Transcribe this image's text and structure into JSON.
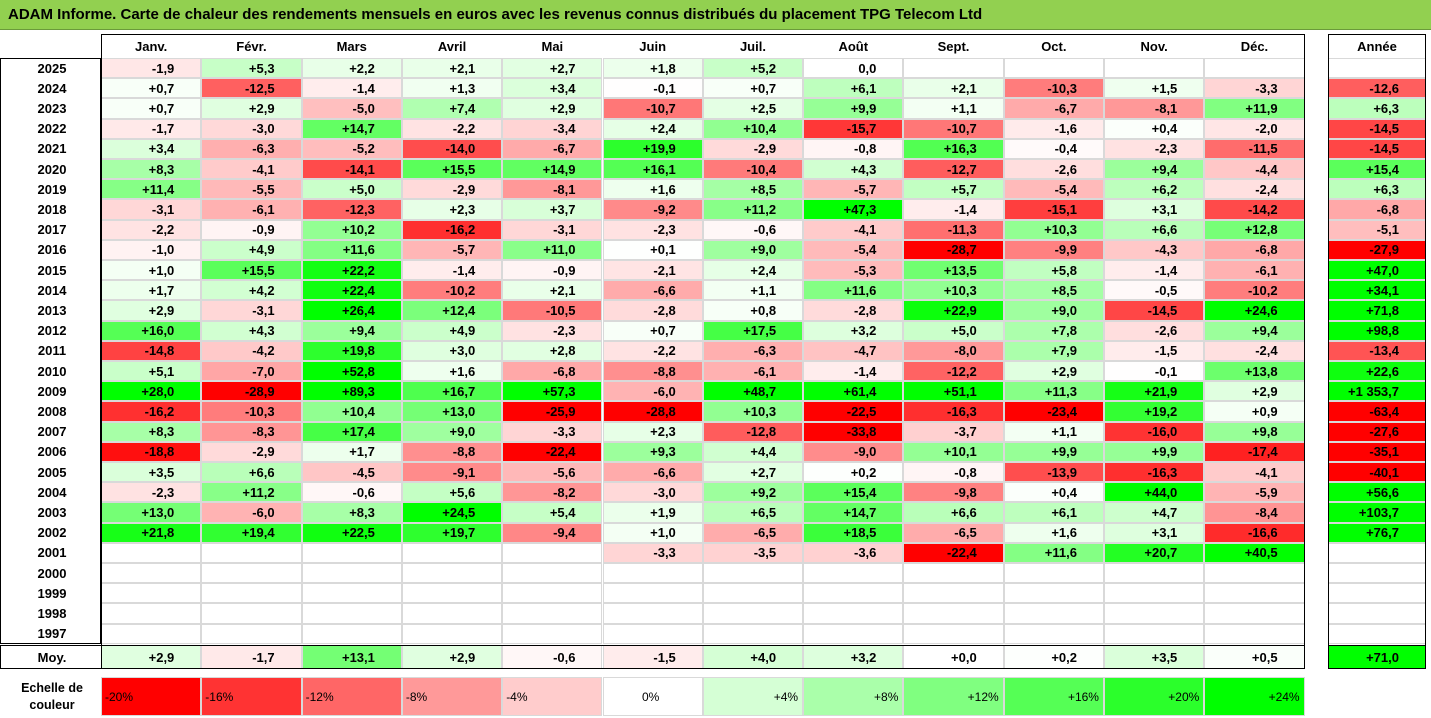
{
  "title": "ADAM Informe. Carte de chaleur des rendements mensuels en euros avec les revenus connus distribués du placement TPG Telecom Ltd",
  "chart_data": {
    "type": "heatmap",
    "title": "ADAM Informe. Carte de chaleur des rendements mensuels en euros avec les revenus connus distribués du placement TPG Telecom Ltd",
    "months": [
      "Janv.",
      "Févr.",
      "Mars",
      "Avril",
      "Mai",
      "Juin",
      "Juil.",
      "Août",
      "Sept.",
      "Oct.",
      "Nov.",
      "Déc."
    ],
    "year_header": "Année",
    "rows": [
      {
        "year": "2025",
        "values": [
          "-1,9",
          "+5,3",
          "+2,2",
          "+2,1",
          "+2,7",
          "+1,8",
          "+5,2",
          "0,0",
          "",
          "",
          "",
          ""
        ],
        "annual": ""
      },
      {
        "year": "2024",
        "values": [
          "+0,7",
          "-12,5",
          "-1,4",
          "+1,3",
          "+3,4",
          "-0,1",
          "+0,7",
          "+6,1",
          "+2,1",
          "-10,3",
          "+1,5",
          "-3,3"
        ],
        "annual": "-12,6"
      },
      {
        "year": "2023",
        "values": [
          "+0,7",
          "+2,9",
          "-5,0",
          "+7,4",
          "+2,9",
          "-10,7",
          "+2,5",
          "+9,9",
          "+1,1",
          "-6,7",
          "-8,1",
          "+11,9"
        ],
        "annual": "+6,3"
      },
      {
        "year": "2022",
        "values": [
          "-1,7",
          "-3,0",
          "+14,7",
          "-2,2",
          "-3,4",
          "+2,4",
          "+10,4",
          "-15,7",
          "-10,7",
          "-1,6",
          "+0,4",
          "-2,0"
        ],
        "annual": "-14,5"
      },
      {
        "year": "2021",
        "values": [
          "+3,4",
          "-6,3",
          "-5,2",
          "-14,0",
          "-6,7",
          "+19,9",
          "-2,9",
          "-0,8",
          "+16,3",
          "-0,4",
          "-2,3",
          "-11,5"
        ],
        "annual": "-14,5"
      },
      {
        "year": "2020",
        "values": [
          "+8,3",
          "-4,1",
          "-14,1",
          "+15,5",
          "+14,9",
          "+16,1",
          "-10,4",
          "+4,3",
          "-12,7",
          "-2,6",
          "+9,4",
          "-4,4"
        ],
        "annual": "+15,4"
      },
      {
        "year": "2019",
        "values": [
          "+11,4",
          "-5,5",
          "+5,0",
          "-2,9",
          "-8,1",
          "+1,6",
          "+8,5",
          "-5,7",
          "+5,7",
          "-5,4",
          "+6,2",
          "-2,4"
        ],
        "annual": "+6,3"
      },
      {
        "year": "2018",
        "values": [
          "-3,1",
          "-6,1",
          "-12,3",
          "+2,3",
          "+3,7",
          "-9,2",
          "+11,2",
          "+47,3",
          "-1,4",
          "-15,1",
          "+3,1",
          "-14,2"
        ],
        "annual": "-6,8"
      },
      {
        "year": "2017",
        "values": [
          "-2,2",
          "-0,9",
          "+10,2",
          "-16,2",
          "-3,1",
          "-2,3",
          "-0,6",
          "-4,1",
          "-11,3",
          "+10,3",
          "+6,6",
          "+12,8"
        ],
        "annual": "-5,1"
      },
      {
        "year": "2016",
        "values": [
          "-1,0",
          "+4,9",
          "+11,6",
          "-5,7",
          "+11,0",
          "+0,1",
          "+9,0",
          "-5,4",
          "-28,7",
          "-9,9",
          "-4,3",
          "-6,8"
        ],
        "annual": "-27,9"
      },
      {
        "year": "2015",
        "values": [
          "+1,0",
          "+15,5",
          "+22,2",
          "-1,4",
          "-0,9",
          "-2,1",
          "+2,4",
          "-5,3",
          "+13,5",
          "+5,8",
          "-1,4",
          "-6,1"
        ],
        "annual": "+47,0"
      },
      {
        "year": "2014",
        "values": [
          "+1,7",
          "+4,2",
          "+22,4",
          "-10,2",
          "+2,1",
          "-6,6",
          "+1,1",
          "+11,6",
          "+10,3",
          "+8,5",
          "-0,5",
          "-10,2"
        ],
        "annual": "+34,1"
      },
      {
        "year": "2013",
        "values": [
          "+2,9",
          "-3,1",
          "+26,4",
          "+12,4",
          "-10,5",
          "-2,8",
          "+0,8",
          "-2,8",
          "+22,9",
          "+9,0",
          "-14,5",
          "+24,6"
        ],
        "annual": "+71,8"
      },
      {
        "year": "2012",
        "values": [
          "+16,0",
          "+4,3",
          "+9,4",
          "+4,9",
          "-2,3",
          "+0,7",
          "+17,5",
          "+3,2",
          "+5,0",
          "+7,8",
          "-2,6",
          "+9,4"
        ],
        "annual": "+98,8"
      },
      {
        "year": "2011",
        "values": [
          "-14,8",
          "-4,2",
          "+19,8",
          "+3,0",
          "+2,8",
          "-2,2",
          "-6,3",
          "-4,7",
          "-8,0",
          "+7,9",
          "-1,5",
          "-2,4"
        ],
        "annual": "-13,4"
      },
      {
        "year": "2010",
        "values": [
          "+5,1",
          "-7,0",
          "+52,8",
          "+1,6",
          "-6,8",
          "-8,8",
          "-6,1",
          "-1,4",
          "-12,2",
          "+2,9",
          "-0,1",
          "+13,8"
        ],
        "annual": "+22,6"
      },
      {
        "year": "2009",
        "values": [
          "+28,0",
          "-28,9",
          "+89,3",
          "+16,7",
          "+57,3",
          "-6,0",
          "+48,7",
          "+61,4",
          "+51,1",
          "+11,3",
          "+21,9",
          "+2,9"
        ],
        "annual": "+1 353,7"
      },
      {
        "year": "2008",
        "values": [
          "-16,2",
          "-10,3",
          "+10,4",
          "+13,0",
          "-25,9",
          "-28,8",
          "+10,3",
          "-22,5",
          "-16,3",
          "-23,4",
          "+19,2",
          "+0,9"
        ],
        "annual": "-63,4"
      },
      {
        "year": "2007",
        "values": [
          "+8,3",
          "-8,3",
          "+17,4",
          "+9,0",
          "-3,3",
          "+2,3",
          "-12,8",
          "-33,8",
          "-3,7",
          "+1,1",
          "-16,0",
          "+9,8"
        ],
        "annual": "-27,6"
      },
      {
        "year": "2006",
        "values": [
          "-18,8",
          "-2,9",
          "+1,7",
          "-8,8",
          "-22,4",
          "+9,3",
          "+4,4",
          "-9,0",
          "+10,1",
          "+9,9",
          "+9,9",
          "-17,4"
        ],
        "annual": "-35,1"
      },
      {
        "year": "2005",
        "values": [
          "+3,5",
          "+6,6",
          "-4,5",
          "-9,1",
          "-5,6",
          "-6,6",
          "+2,7",
          "+0,2",
          "-0,8",
          "-13,9",
          "-16,3",
          "-4,1"
        ],
        "annual": "-40,1"
      },
      {
        "year": "2004",
        "values": [
          "-2,3",
          "+11,2",
          "-0,6",
          "+5,6",
          "-8,2",
          "-3,0",
          "+9,2",
          "+15,4",
          "-9,8",
          "+0,4",
          "+44,0",
          "-5,9"
        ],
        "annual": "+56,6"
      },
      {
        "year": "2003",
        "values": [
          "+13,0",
          "-6,0",
          "+8,3",
          "+24,5",
          "+5,4",
          "+1,9",
          "+6,5",
          "+14,7",
          "+6,6",
          "+6,1",
          "+4,7",
          "-8,4"
        ],
        "annual": "+103,7"
      },
      {
        "year": "2002",
        "values": [
          "+21,8",
          "+19,4",
          "+22,5",
          "+19,7",
          "-9,4",
          "+1,0",
          "-6,5",
          "+18,5",
          "-6,5",
          "+1,6",
          "+3,1",
          "-16,6"
        ],
        "annual": "+76,7"
      },
      {
        "year": "2001",
        "values": [
          "",
          "",
          "",
          "",
          "",
          "-3,3",
          "-3,5",
          "-3,6",
          "-22,4",
          "+11,6",
          "+20,7",
          "+40,5"
        ],
        "annual": ""
      },
      {
        "year": "2000",
        "values": [
          "",
          "",
          "",
          "",
          "",
          "",
          "",
          "",
          "",
          "",
          "",
          ""
        ],
        "annual": ""
      },
      {
        "year": "1999",
        "values": [
          "",
          "",
          "",
          "",
          "",
          "",
          "",
          "",
          "",
          "",
          "",
          ""
        ],
        "annual": ""
      },
      {
        "year": "1998",
        "values": [
          "",
          "",
          "",
          "",
          "",
          "",
          "",
          "",
          "",
          "",
          "",
          ""
        ],
        "annual": ""
      },
      {
        "year": "1997",
        "values": [
          "",
          "",
          "",
          "",
          "",
          "",
          "",
          "",
          "",
          "",
          "",
          ""
        ],
        "annual": ""
      }
    ],
    "average": {
      "label": "Moy.",
      "values": [
        "+2,9",
        "-1,7",
        "+13,1",
        "+2,9",
        "-0,6",
        "-1,5",
        "+4,0",
        "+3,2",
        "+0,0",
        "+0,2",
        "+3,5",
        "+0,5"
      ],
      "annual": "+71,0"
    },
    "scale": {
      "label": "Echelle de couleur",
      "steps": [
        {
          "label": "-20%",
          "value": -20
        },
        {
          "label": "-16%",
          "value": -16
        },
        {
          "label": "-12%",
          "value": -12
        },
        {
          "label": "-8%",
          "value": -8
        },
        {
          "label": "-4%",
          "value": -4
        },
        {
          "label": "0%",
          "value": 0
        },
        {
          "label": "+4%",
          "value": 4
        },
        {
          "label": "+8%",
          "value": 8
        },
        {
          "label": "+12%",
          "value": 12
        },
        {
          "label": "+16%",
          "value": 16
        },
        {
          "label": "+20%",
          "value": 20
        },
        {
          "label": "+24%",
          "value": 24
        }
      ]
    }
  }
}
